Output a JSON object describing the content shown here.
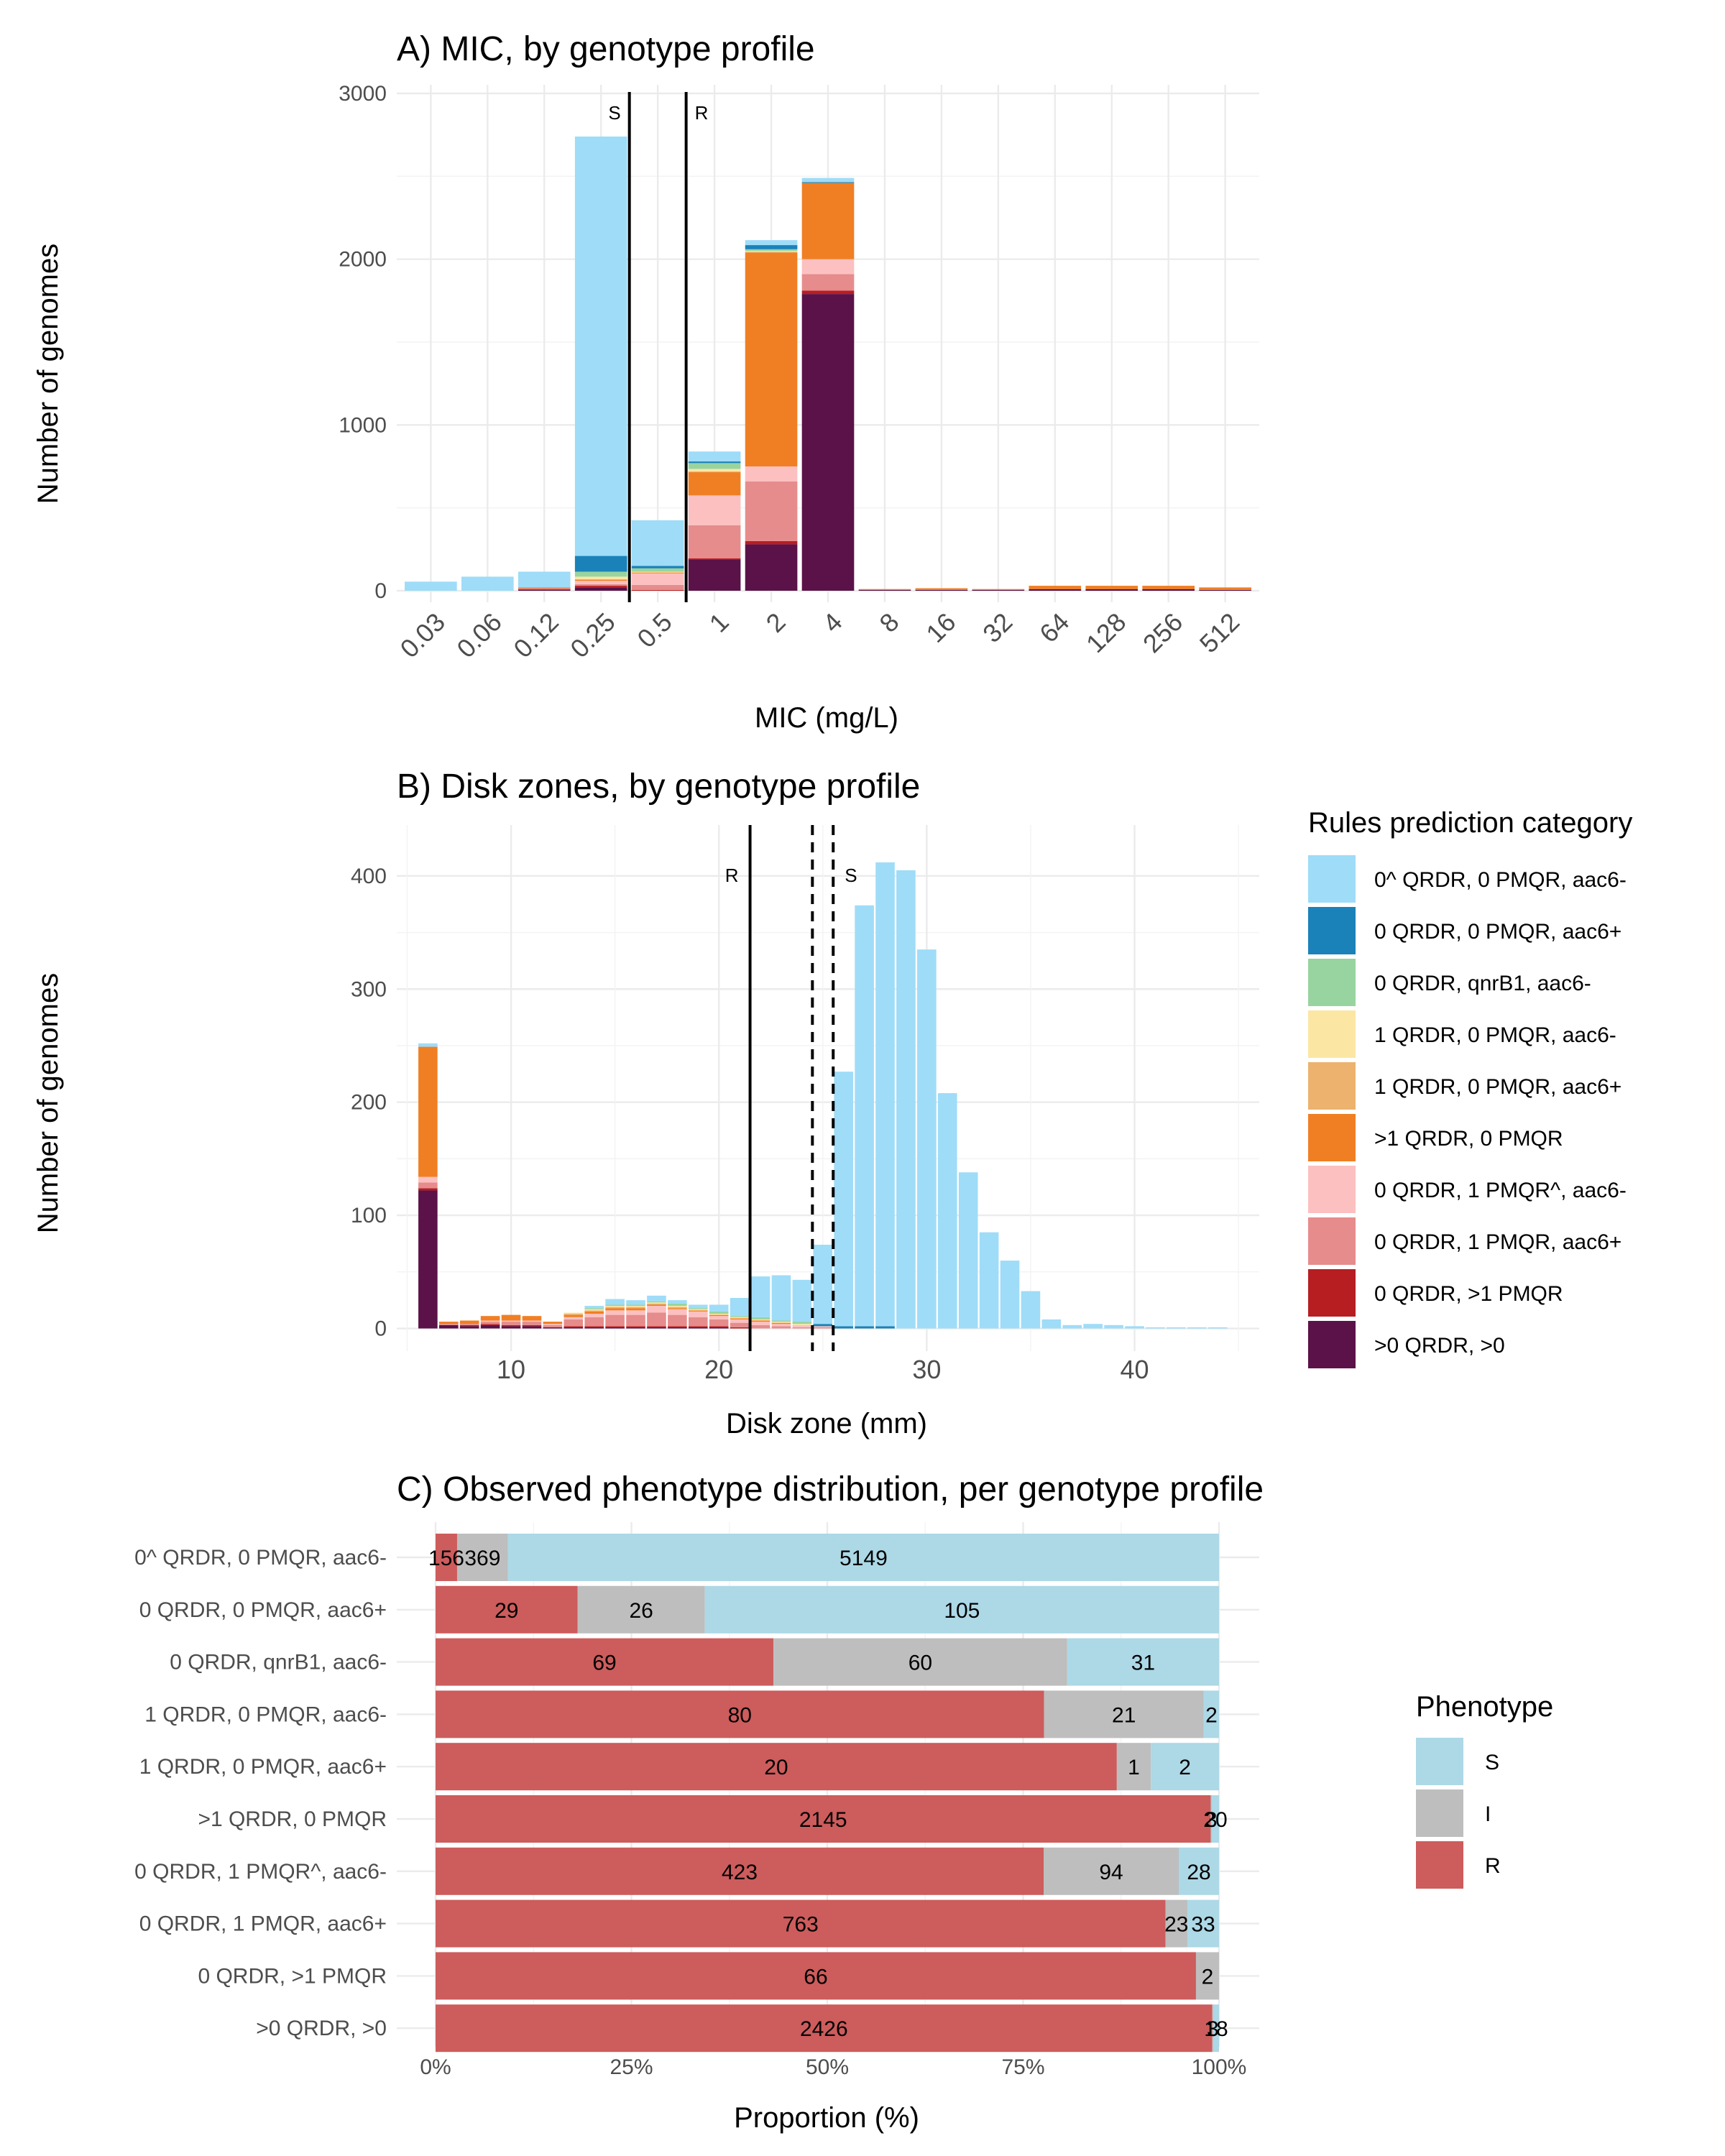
{
  "colors": {
    "0^ QRDR, 0 PMQR, aac6-": "#9fdcf8",
    "0 QRDR, 0 PMQR, aac6+": "#1a82b8",
    "0 QRDR, qnrB1, aac6-": "#98d4a0",
    "1 QRDR, 0 PMQR, aac6-": "#fbe6a4",
    "1 QRDR, 0 PMQR, aac6+": "#ecb26e",
    ">1 QRDR, 0 PMQR": "#f07f24",
    "0 QRDR, 1 PMQR^, aac6-": "#fcc0c0",
    "0 QRDR, 1 PMQR, aac6+": "#e68c8c",
    "0 QRDR, >1 PMQR": "#b61e22",
    ">0 QRDR, >0": "#5b1248",
    "S": "#add8e6",
    "I": "#bebebe",
    "R": "#cd5c5c"
  },
  "chart_data": [
    {
      "type": "bar",
      "title": "A) MIC, by genotype profile",
      "xlabel": "MIC (mg/L)",
      "ylabel": "Number of genomes",
      "ylim": [
        0,
        3000
      ],
      "yticks": [
        0,
        1000,
        2000,
        3000
      ],
      "grid": true,
      "categories": [
        "0.03",
        "0.06",
        "0.12",
        "0.25",
        "0.5",
        "1",
        "2",
        "4",
        "8",
        "16",
        "32",
        "64",
        "128",
        "256",
        "512"
      ],
      "breakpoints": [
        {
          "label": "S",
          "after_category": "0.25"
        },
        {
          "label": "R",
          "after_category": "0.5"
        }
      ],
      "series": [
        {
          "name": "0^ QRDR, 0 PMQR, aac6-",
          "values": [
            55,
            85,
            95,
            2530,
            275,
            60,
            30,
            25,
            0,
            0,
            0,
            0,
            0,
            0,
            0
          ]
        },
        {
          "name": "0 QRDR, 0 PMQR, aac6+",
          "values": [
            0,
            0,
            0,
            95,
            15,
            10,
            25,
            5,
            0,
            0,
            0,
            0,
            0,
            0,
            0
          ]
        },
        {
          "name": "0 QRDR, qnrB1, aac6-",
          "values": [
            0,
            0,
            0,
            30,
            20,
            35,
            10,
            0,
            0,
            0,
            0,
            0,
            0,
            0,
            0
          ]
        },
        {
          "name": "1 QRDR, 0 PMQR, aac6-",
          "values": [
            0,
            0,
            0,
            15,
            5,
            15,
            5,
            0,
            0,
            0,
            0,
            0,
            0,
            0,
            0
          ]
        },
        {
          "name": "1 QRDR, 0 PMQR, aac6+",
          "values": [
            0,
            0,
            0,
            5,
            0,
            5,
            5,
            0,
            0,
            0,
            0,
            0,
            0,
            0,
            0
          ]
        },
        {
          "name": ">1 QRDR, 0 PMQR",
          "values": [
            0,
            0,
            5,
            5,
            5,
            140,
            1290,
            460,
            5,
            10,
            5,
            20,
            20,
            20,
            15
          ]
        },
        {
          "name": "0 QRDR, 1 PMQR^, aac6-",
          "values": [
            0,
            0,
            0,
            20,
            70,
            180,
            90,
            90,
            0,
            0,
            0,
            0,
            0,
            0,
            0
          ]
        },
        {
          "name": "0 QRDR, 1 PMQR, aac6+",
          "values": [
            0,
            0,
            5,
            10,
            30,
            200,
            360,
            100,
            0,
            0,
            0,
            0,
            0,
            0,
            0
          ]
        },
        {
          "name": "0 QRDR, >1 PMQR",
          "values": [
            0,
            0,
            5,
            10,
            5,
            5,
            20,
            20,
            0,
            0,
            0,
            0,
            0,
            0,
            0
          ]
        },
        {
          "name": ">0 QRDR, >0",
          "values": [
            0,
            0,
            5,
            20,
            0,
            190,
            280,
            1790,
            5,
            5,
            5,
            10,
            10,
            10,
            5
          ]
        }
      ]
    },
    {
      "type": "bar",
      "title": "B) Disk zones, by genotype profile",
      "xlabel": "Disk zone (mm)",
      "ylabel": "Number of genomes",
      "xlim": [
        4.5,
        46
      ],
      "ylim": [
        -20,
        445
      ],
      "xticks": [
        10,
        20,
        30,
        40
      ],
      "yticks": [
        0,
        100,
        200,
        300,
        400
      ],
      "grid": true,
      "x": [
        6,
        7,
        8,
        9,
        10,
        11,
        12,
        13,
        14,
        15,
        16,
        17,
        18,
        19,
        20,
        21,
        22,
        23,
        24,
        25,
        26,
        27,
        28,
        29,
        30,
        31,
        32,
        33,
        34,
        35,
        36,
        37,
        38,
        39,
        40,
        41,
        42,
        43,
        44
      ],
      "breakpoints": [
        {
          "label": "R",
          "x": 21.5,
          "style": "solid"
        },
        {
          "label": "",
          "x": 24.5,
          "style": "dashed"
        },
        {
          "label": "S",
          "x": 25.5,
          "style": "dashed"
        }
      ],
      "series": [
        {
          "name": "0^ QRDR, 0 PMQR, aac6-",
          "values": [
            3,
            0,
            0,
            0,
            0,
            0,
            0,
            0,
            2,
            5,
            4,
            5,
            3,
            3,
            6,
            16,
            36,
            40,
            37,
            70,
            225,
            372,
            410,
            405,
            335,
            208,
            138,
            85,
            60,
            33,
            8,
            3,
            4,
            3,
            2,
            1,
            1,
            1,
            1
          ]
        },
        {
          "name": "0 QRDR, 0 PMQR, aac6+",
          "values": [
            0,
            0,
            0,
            0,
            0,
            0,
            0,
            0,
            0,
            0,
            0,
            0,
            0,
            0,
            0,
            0,
            0,
            0,
            0,
            2,
            2,
            2,
            2,
            0,
            0,
            0,
            0,
            0,
            0,
            0,
            0,
            0,
            0,
            0,
            0,
            0,
            0,
            0,
            0
          ]
        },
        {
          "name": "0 QRDR, qnrB1, aac6-",
          "values": [
            0,
            0,
            0,
            0,
            0,
            0,
            0,
            0,
            1,
            1,
            1,
            1,
            2,
            1,
            2,
            1,
            2,
            1,
            2,
            0,
            0,
            0,
            0,
            0,
            0,
            0,
            0,
            0,
            0,
            0,
            0,
            0,
            0,
            0,
            0,
            0,
            0,
            0,
            0
          ]
        },
        {
          "name": "1 QRDR, 0 PMQR, aac6-",
          "values": [
            0,
            0,
            0,
            0,
            0,
            0,
            0,
            1,
            1,
            1,
            1,
            1,
            1,
            1,
            1,
            1,
            1,
            1,
            1,
            0,
            0,
            0,
            0,
            0,
            0,
            0,
            0,
            0,
            0,
            0,
            0,
            0,
            0,
            0,
            0,
            0,
            0,
            0,
            0
          ]
        },
        {
          "name": "1 QRDR, 0 PMQR, aac6+",
          "values": [
            0,
            0,
            0,
            0,
            0,
            0,
            0,
            1,
            1,
            1,
            1,
            1,
            1,
            0,
            0,
            0,
            0,
            0,
            0,
            0,
            0,
            0,
            0,
            0,
            0,
            0,
            0,
            0,
            0,
            0,
            0,
            0,
            0,
            0,
            0,
            0,
            0,
            0,
            0
          ]
        },
        {
          "name": ">1 QRDR, 0 PMQR",
          "values": [
            115,
            2,
            3,
            4,
            5,
            4,
            2,
            2,
            2,
            2,
            2,
            1,
            1,
            1,
            1,
            1,
            1,
            1,
            0,
            0,
            0,
            0,
            0,
            0,
            0,
            0,
            0,
            0,
            0,
            0,
            0,
            0,
            0,
            0,
            0,
            0,
            0,
            0,
            0
          ]
        },
        {
          "name": "0 QRDR, 1 PMQR^, aac6-",
          "values": [
            5,
            0,
            0,
            1,
            1,
            1,
            1,
            2,
            3,
            4,
            4,
            6,
            5,
            5,
            3,
            3,
            3,
            2,
            2,
            1,
            0,
            0,
            0,
            0,
            0,
            0,
            0,
            0,
            0,
            0,
            0,
            0,
            0,
            0,
            0,
            0,
            0,
            0,
            0
          ]
        },
        {
          "name": "0 QRDR, 1 PMQR, aac6+",
          "values": [
            5,
            1,
            1,
            2,
            3,
            3,
            2,
            6,
            8,
            10,
            10,
            12,
            10,
            8,
            6,
            4,
            3,
            2,
            1,
            1,
            0,
            0,
            0,
            0,
            0,
            0,
            0,
            0,
            0,
            0,
            0,
            0,
            0,
            0,
            0,
            0,
            0,
            0,
            0
          ]
        },
        {
          "name": "0 QRDR, >1 PMQR",
          "values": [
            2,
            0,
            1,
            1,
            1,
            1,
            0,
            1,
            1,
            1,
            1,
            1,
            1,
            1,
            1,
            1,
            0,
            0,
            0,
            0,
            0,
            0,
            0,
            0,
            0,
            0,
            0,
            0,
            0,
            0,
            0,
            0,
            0,
            0,
            0,
            0,
            0,
            0,
            0
          ]
        },
        {
          "name": ">0 QRDR, >0",
          "values": [
            122,
            3,
            2,
            3,
            2,
            2,
            1,
            1,
            1,
            1,
            1,
            1,
            1,
            1,
            1,
            0,
            0,
            0,
            0,
            0,
            0,
            0,
            0,
            0,
            0,
            0,
            0,
            0,
            0,
            0,
            0,
            0,
            0,
            0,
            0,
            0,
            0,
            0,
            0
          ]
        }
      ]
    },
    {
      "type": "bar",
      "orientation": "horizontal",
      "title": "C) Observed phenotype distribution, per genotype profile",
      "xlabel": "Proportion (%)",
      "ylabel": "",
      "xticks": [
        "0%",
        "25%",
        "50%",
        "75%",
        "100%"
      ],
      "grid": true,
      "categories": [
        "0^ QRDR, 0 PMQR, aac6-",
        "0 QRDR, 0 PMQR, aac6+",
        "0 QRDR, qnrB1, aac6-",
        "1 QRDR, 0 PMQR, aac6-",
        "1 QRDR, 0 PMQR, aac6+",
        ">1 QRDR, 0 PMQR",
        "0 QRDR, 1 PMQR^, aac6-",
        "0 QRDR, 1 PMQR, aac6+",
        "0 QRDR, >1 PMQR",
        ">0 QRDR, >0"
      ],
      "series": [
        {
          "name": "R",
          "values": [
            156,
            29,
            69,
            80,
            20,
            2145,
            423,
            763,
            66,
            2426
          ]
        },
        {
          "name": "I",
          "values": [
            369,
            26,
            60,
            21,
            1,
            3,
            94,
            23,
            2,
            3
          ]
        },
        {
          "name": "S",
          "values": [
            5149,
            105,
            31,
            2,
            2,
            20,
            28,
            33,
            0,
            18
          ]
        }
      ]
    }
  ],
  "legend_genotype": {
    "title": "Rules prediction category",
    "items": [
      "0^ QRDR, 0 PMQR, aac6-",
      "0 QRDR, 0 PMQR, aac6+",
      "0 QRDR, qnrB1, aac6-",
      "1 QRDR, 0 PMQR, aac6-",
      "1 QRDR, 0 PMQR, aac6+",
      ">1 QRDR, 0 PMQR",
      "0 QRDR, 1 PMQR^, aac6-",
      "0 QRDR, 1 PMQR, aac6+",
      "0 QRDR, >1 PMQR",
      ">0 QRDR, >0"
    ]
  },
  "legend_phenotype": {
    "title": "Phenotype",
    "items": [
      "S",
      "I",
      "R"
    ]
  }
}
